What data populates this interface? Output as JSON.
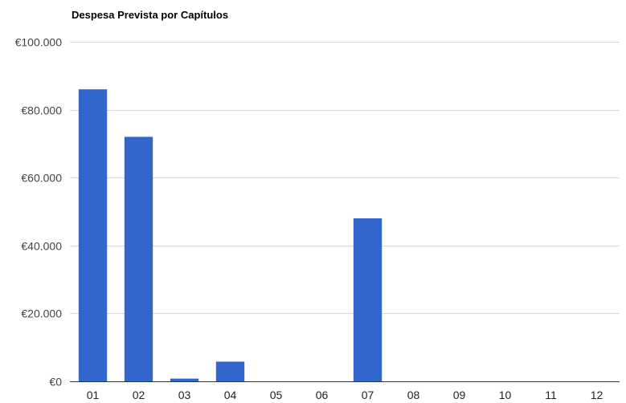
{
  "chart_data": {
    "type": "bar",
    "title": "Despesa Prevista por Capítulos",
    "xlabel": "",
    "ylabel": "",
    "categories": [
      "01",
      "02",
      "03",
      "04",
      "05",
      "06",
      "07",
      "08",
      "09",
      "10",
      "11",
      "12"
    ],
    "values": [
      86000,
      72000,
      800,
      5800,
      0,
      0,
      48000,
      0,
      0,
      0,
      0,
      0
    ],
    "ylim": [
      0,
      100000
    ],
    "yticks": [
      0,
      20000,
      40000,
      60000,
      80000,
      100000
    ],
    "ytick_labels": [
      "€0",
      "€20.000",
      "€40.000",
      "€60.000",
      "€80.000",
      "€100.000"
    ],
    "grid": true,
    "legend": "none",
    "bar_color": "#3366cc",
    "grid_color": "#d8d8d8"
  }
}
